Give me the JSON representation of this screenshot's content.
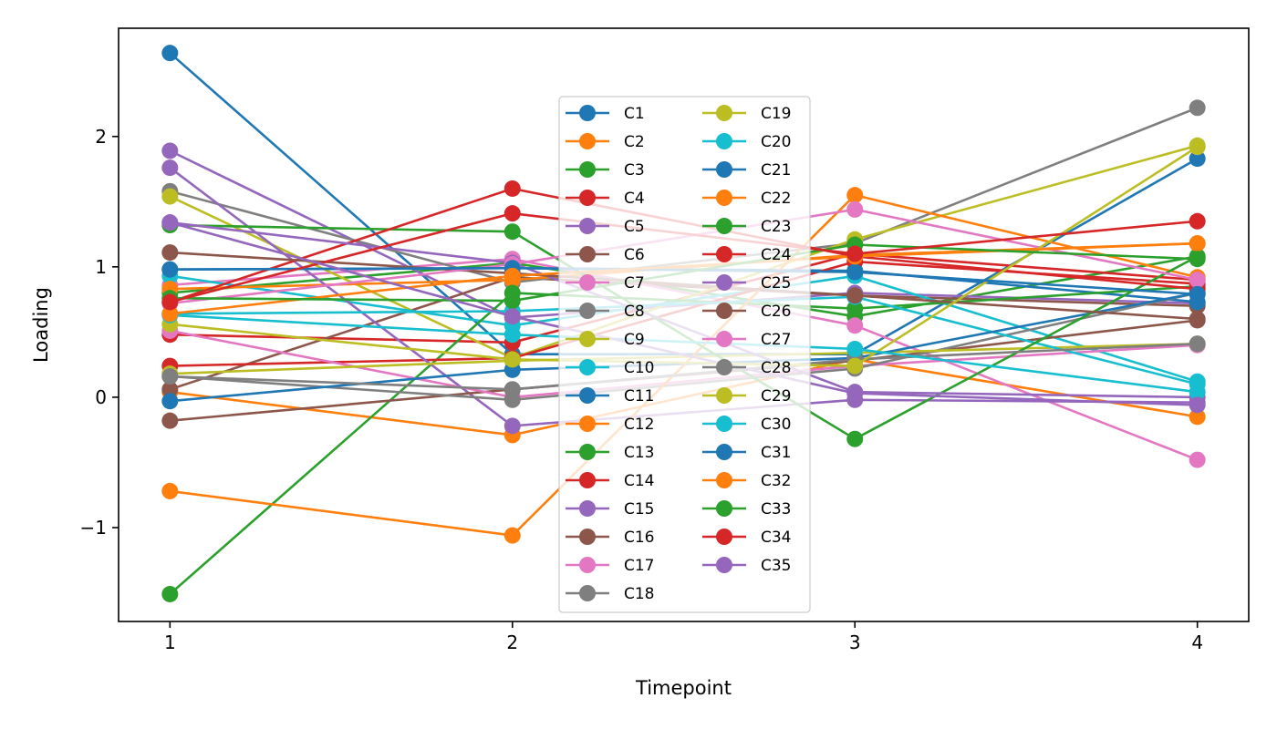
{
  "chart_data": {
    "type": "line",
    "title": "",
    "xlabel": "Timepoint",
    "ylabel": "Loading",
    "x": [
      1,
      2,
      3,
      4
    ],
    "xlim": [
      0.85,
      4.15
    ],
    "ylim": [
      -1.72,
      2.83
    ],
    "xticks": [
      "1",
      "2",
      "3",
      "4"
    ],
    "yticks": [
      {
        "value": -1,
        "label": "−1"
      },
      {
        "value": 0,
        "label": "0"
      },
      {
        "value": 1,
        "label": "1"
      },
      {
        "value": 2,
        "label": "2"
      }
    ],
    "grid": false,
    "legend": {
      "placement": "center",
      "columns": 2
    },
    "series": [
      {
        "name": "C1",
        "color": "#1f77b4",
        "values": [
          2.64,
          0.33,
          0.33,
          1.83
        ]
      },
      {
        "name": "C2",
        "color": "#ff7f0e",
        "values": [
          0.04,
          -0.29,
          0.29,
          -0.15
        ]
      },
      {
        "name": "C3",
        "color": "#2ca02c",
        "values": [
          0.8,
          1.03,
          0.62,
          1.08
        ]
      },
      {
        "name": "C4",
        "color": "#d62728",
        "values": [
          0.48,
          0.42,
          1.1,
          0.9
        ]
      },
      {
        "name": "C5",
        "color": "#9467bd",
        "values": [
          1.89,
          0.61,
          0.8,
          0.72
        ]
      },
      {
        "name": "C6",
        "color": "#8c564b",
        "values": [
          0.06,
          0.92,
          0.78,
          0.7
        ]
      },
      {
        "name": "C7",
        "color": "#e377c2",
        "values": [
          0.86,
          1.06,
          0.55,
          -0.48
        ]
      },
      {
        "name": "C8",
        "color": "#7f7f7f",
        "values": [
          1.58,
          0.88,
          1.18,
          2.22
        ]
      },
      {
        "name": "C9",
        "color": "#bcbd22",
        "values": [
          1.54,
          0.3,
          1.21,
          1.93
        ]
      },
      {
        "name": "C10",
        "color": "#17becf",
        "values": [
          0.93,
          0.55,
          0.93,
          0.12
        ]
      },
      {
        "name": "C11",
        "color": "#1f77b4",
        "values": [
          0.98,
          0.99,
          0.97,
          0.73
        ]
      },
      {
        "name": "C12",
        "color": "#ff7f0e",
        "values": [
          0.83,
          0.9,
          1.09,
          1.18
        ]
      },
      {
        "name": "C13",
        "color": "#2ca02c",
        "values": [
          -1.51,
          0.8,
          0.68,
          0.85
        ]
      },
      {
        "name": "C14",
        "color": "#d62728",
        "values": [
          0.24,
          0.3,
          1.04,
          0.87
        ]
      },
      {
        "name": "C15",
        "color": "#9467bd",
        "values": [
          1.76,
          -0.22,
          -0.02,
          -0.04
        ]
      },
      {
        "name": "C16",
        "color": "#8c564b",
        "values": [
          -0.18,
          0.06,
          0.28,
          0.59
        ]
      },
      {
        "name": "C17",
        "color": "#e377c2",
        "values": [
          0.51,
          0.0,
          0.24,
          0.4
        ]
      },
      {
        "name": "C18",
        "color": "#7f7f7f",
        "values": [
          0.16,
          -0.02,
          0.22,
          0.8
        ]
      },
      {
        "name": "C19",
        "color": "#bcbd22",
        "values": [
          0.18,
          0.28,
          0.34,
          0.41
        ]
      },
      {
        "name": "C20",
        "color": "#17becf",
        "values": [
          0.64,
          0.66,
          0.77,
          0.1
        ]
      },
      {
        "name": "C21",
        "color": "#1f77b4",
        "values": [
          -0.03,
          0.21,
          0.3,
          0.8
        ]
      },
      {
        "name": "C22",
        "color": "#ff7f0e",
        "values": [
          -0.72,
          -1.06,
          1.55,
          0.92
        ]
      },
      {
        "name": "C23",
        "color": "#2ca02c",
        "values": [
          1.32,
          1.27,
          -0.32,
          1.08
        ]
      },
      {
        "name": "C24",
        "color": "#d62728",
        "values": [
          0.73,
          1.6,
          1.08,
          0.83
        ]
      },
      {
        "name": "C25",
        "color": "#9467bd",
        "values": [
          1.34,
          1.03,
          0.04,
          0.0
        ]
      },
      {
        "name": "C26",
        "color": "#8c564b",
        "values": [
          1.11,
          0.95,
          0.78,
          0.6
        ]
      },
      {
        "name": "C27",
        "color": "#e377c2",
        "values": [
          0.72,
          1.02,
          1.44,
          0.9
        ]
      },
      {
        "name": "C28",
        "color": "#7f7f7f",
        "values": [
          0.16,
          0.06,
          0.29,
          0.41
        ]
      },
      {
        "name": "C29",
        "color": "#bcbd22",
        "values": [
          0.56,
          0.29,
          0.24,
          1.92
        ]
      },
      {
        "name": "C30",
        "color": "#17becf",
        "values": [
          0.63,
          0.48,
          0.37,
          0.04
        ]
      },
      {
        "name": "C31",
        "color": "#1f77b4",
        "values": [
          0.98,
          0.99,
          0.96,
          0.79
        ]
      },
      {
        "name": "C32",
        "color": "#ff7f0e",
        "values": [
          0.64,
          0.93,
          1.08,
          1.18
        ]
      },
      {
        "name": "C33",
        "color": "#2ca02c",
        "values": [
          0.76,
          0.74,
          1.17,
          1.06
        ]
      },
      {
        "name": "C34",
        "color": "#d62728",
        "values": [
          0.73,
          1.41,
          1.1,
          1.35
        ]
      },
      {
        "name": "C35",
        "color": "#9467bd",
        "values": [
          1.34,
          0.62,
          0.03,
          -0.06
        ]
      }
    ]
  }
}
